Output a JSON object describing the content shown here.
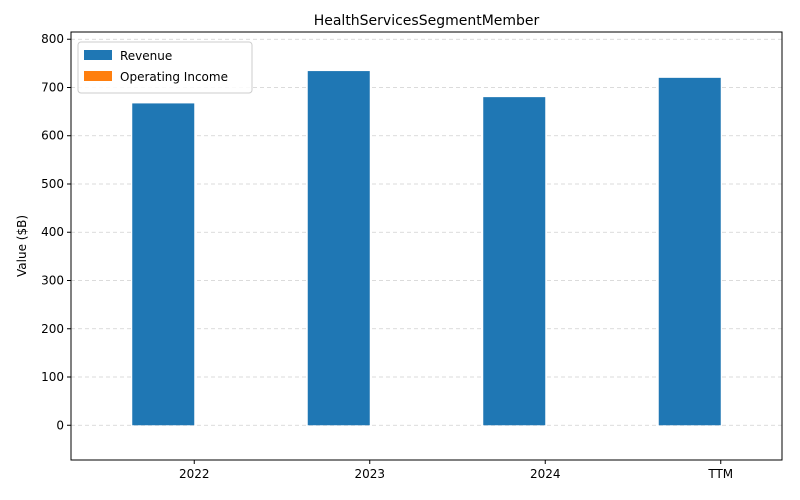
{
  "chart_data": {
    "type": "bar",
    "title": "HealthServicesSegmentMember",
    "xlabel": "",
    "ylabel": "Value ($B)",
    "categories": [
      "2022",
      "2023",
      "2024",
      "TTM"
    ],
    "series": [
      {
        "name": "Revenue",
        "values": [
          667,
          734,
          680,
          720
        ],
        "color": "#1f77b4"
      },
      {
        "name": "Operating Income",
        "values": [
          0,
          0,
          0,
          0
        ],
        "color": "#ff7f0e"
      }
    ],
    "ylim": [
      -72,
      815
    ],
    "yticks": [
      0,
      100,
      200,
      300,
      400,
      500,
      600,
      700,
      800
    ],
    "grid": "y-dashed",
    "legend_position": "top-left"
  }
}
